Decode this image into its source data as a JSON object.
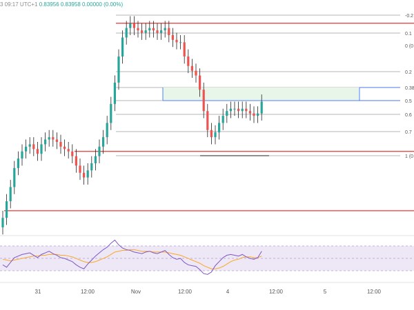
{
  "header": {
    "datetime": "3 09:17 UTC+1",
    "ohlc": "0.83956 0.83958 0.00000 (0.00%)"
  },
  "colors": {
    "up": "#26a69a",
    "down": "#ef5350",
    "wick": "#222222",
    "red_line": "#e53935",
    "fib_line": "#9e9e9e",
    "fib_zone_fill": "#e8f5e9",
    "fib_zone_border": "#2962ff",
    "rsi_band": "#ede7f6",
    "rsi_line": "#7e57c2",
    "rsi_ma": "#f9a825"
  },
  "chart_data": {
    "type": "candlestick",
    "title": "",
    "series": [
      {
        "name": "",
        "values": [
          0.8324,
          0.8331,
          0.8337,
          0.8345,
          0.8349,
          0.8352,
          0.8354,
          0.8355,
          0.8353,
          0.8351,
          0.8355,
          0.8357,
          0.8358,
          0.8357,
          0.8356,
          0.8354,
          0.8353,
          0.8352,
          0.835,
          0.8346,
          0.8343,
          0.8341,
          0.8344,
          0.8347,
          0.835,
          0.8354,
          0.8358,
          0.8364,
          0.8372,
          0.8381,
          0.8392,
          0.84,
          0.8404,
          0.8406,
          0.8404,
          0.8403,
          0.8402,
          0.8403,
          0.8404,
          0.8403,
          0.8402,
          0.8403,
          0.8404,
          0.8401,
          0.8399,
          0.8398,
          0.8398,
          0.8392,
          0.8388,
          0.8386,
          0.8384,
          0.8378,
          0.8369,
          0.8361,
          0.8358,
          0.836,
          0.8364,
          0.8367,
          0.8369,
          0.837,
          0.837,
          0.8369,
          0.837,
          0.8369,
          0.8368,
          0.8367,
          0.8368,
          0.8373
        ]
      }
    ],
    "x_tick_labels": [
      "31",
      "12:00",
      "Nov",
      "12:00",
      "4",
      "12:00",
      "5",
      "12:00"
    ],
    "fib_levels": [
      {
        "label": "-0.2"
      },
      {
        "label": "0.1"
      },
      {
        "label": "0 (0"
      },
      {
        "label": "0.2"
      },
      {
        "label": "0.38"
      },
      {
        "label": "0.5"
      },
      {
        "label": "0.6"
      },
      {
        "label": "0.7"
      },
      {
        "label": "1 (0"
      }
    ],
    "horizontal_lines": [
      0.8406,
      0.8352,
      0.8327
    ],
    "rsi": {
      "values": [
        41,
        38,
        44,
        50,
        52,
        54,
        55,
        56,
        53,
        50,
        54,
        56,
        58,
        55,
        53,
        50,
        49,
        47,
        45,
        41,
        38,
        36,
        42,
        47,
        52,
        56,
        60,
        63,
        68,
        72,
        66,
        62,
        60,
        59,
        57,
        56,
        55,
        57,
        58,
        56,
        55,
        57,
        59,
        54,
        50,
        48,
        49,
        44,
        41,
        40,
        39,
        35,
        30,
        29,
        32,
        40,
        45,
        50,
        53,
        54,
        53,
        52,
        54,
        51,
        49,
        48,
        50,
        58
      ],
      "ma": [
        48,
        47,
        46,
        47,
        48,
        49,
        50,
        51,
        52,
        52,
        53,
        53,
        54,
        54,
        54,
        53,
        53,
        52,
        51,
        49,
        47,
        45,
        44,
        44,
        45,
        47,
        49,
        51,
        54,
        57,
        58,
        59,
        59,
        60,
        60,
        59,
        58,
        58,
        58,
        57,
        57,
        57,
        57,
        56,
        55,
        54,
        53,
        51,
        49,
        47,
        45,
        43,
        40,
        38,
        36,
        36,
        37,
        39,
        42,
        45,
        47,
        48,
        50,
        51,
        51,
        50,
        50,
        52
      ]
    }
  }
}
